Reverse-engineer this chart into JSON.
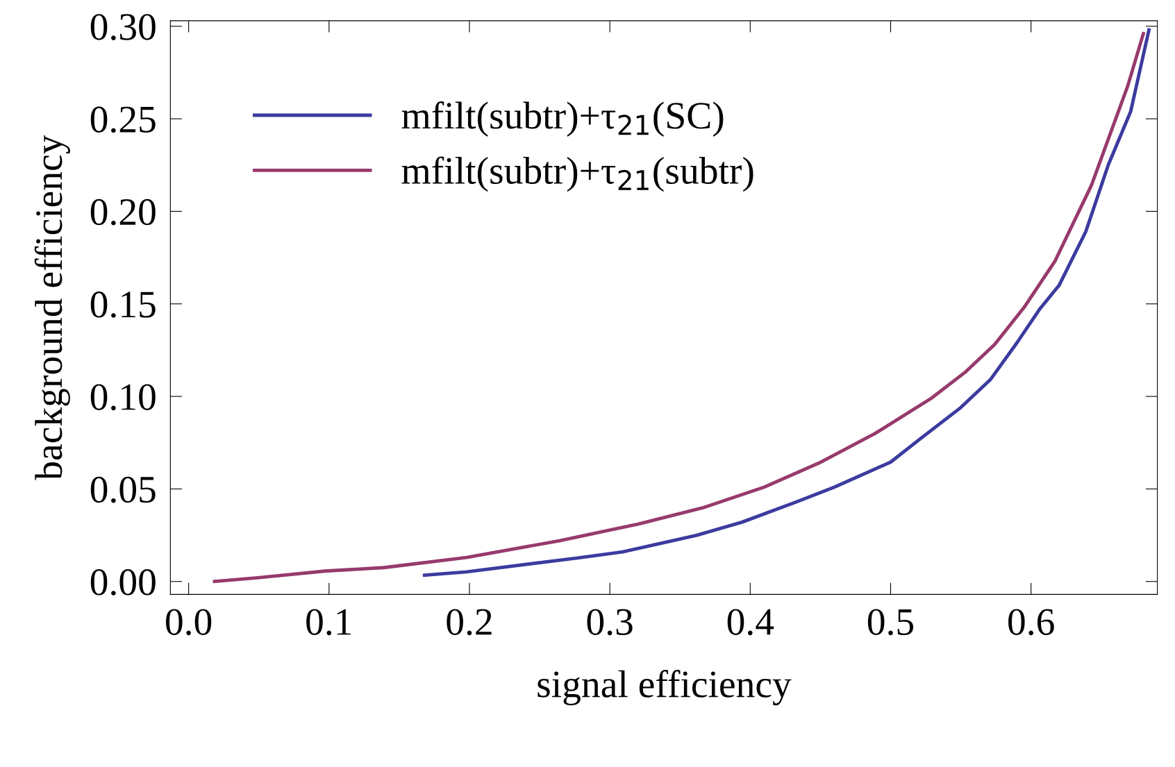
{
  "chart_data": {
    "type": "line",
    "xlabel": "signal efficiency",
    "ylabel": "background efficiency",
    "xlim": [
      -0.013,
      0.69
    ],
    "ylim": [
      -0.007,
      0.303
    ],
    "xticks": [
      {
        "value": 0,
        "label": "0.0"
      },
      0.1,
      0.2,
      0.3,
      0.4,
      0.5,
      0.6
    ],
    "yticks": [
      {
        "value": 0,
        "label": "0.00"
      },
      0.05,
      {
        "value": 0.1,
        "label": "0.10"
      },
      0.15,
      {
        "value": 0.2,
        "label": "0.20"
      },
      0.25,
      {
        "value": 0.3,
        "label": "0.30"
      }
    ],
    "grid": false,
    "legend": "top left",
    "marker": "none",
    "line_style": "solid",
    "series": [
      {
        "name": "mfilt(subtr)+τ$_{21}$(SC)",
        "color": "#3b3b9f",
        "x": [
          0.168,
          0.198,
          0.277,
          0.309,
          0.362,
          0.394,
          0.433,
          0.46,
          0.5,
          0.521,
          0.55,
          0.571,
          0.59,
          0.606,
          0.62,
          0.639,
          0.655,
          0.671,
          0.684
        ],
        "values": [
          0.0034,
          0.0052,
          0.0127,
          0.016,
          0.025,
          0.032,
          0.043,
          0.051,
          0.0645,
          0.077,
          0.094,
          0.109,
          0.129,
          0.147,
          0.16,
          0.189,
          0.225,
          0.254,
          0.298
        ]
      },
      {
        "name": "mfilt(subtr)+τ$_{21}$(subtr)",
        "color": "#973a6c",
        "x": [
          0.0185,
          0.049,
          0.097,
          0.139,
          0.198,
          0.264,
          0.32,
          0.367,
          0.41,
          0.449,
          0.489,
          0.529,
          0.553,
          0.574,
          0.595,
          0.617,
          0.643,
          0.669,
          0.68
        ],
        "values": [
          0.0,
          0.002,
          0.0056,
          0.0075,
          0.013,
          0.022,
          0.031,
          0.04,
          0.051,
          0.064,
          0.08,
          0.099,
          0.113,
          0.128,
          0.148,
          0.173,
          0.214,
          0.268,
          0.296
        ]
      }
    ]
  }
}
